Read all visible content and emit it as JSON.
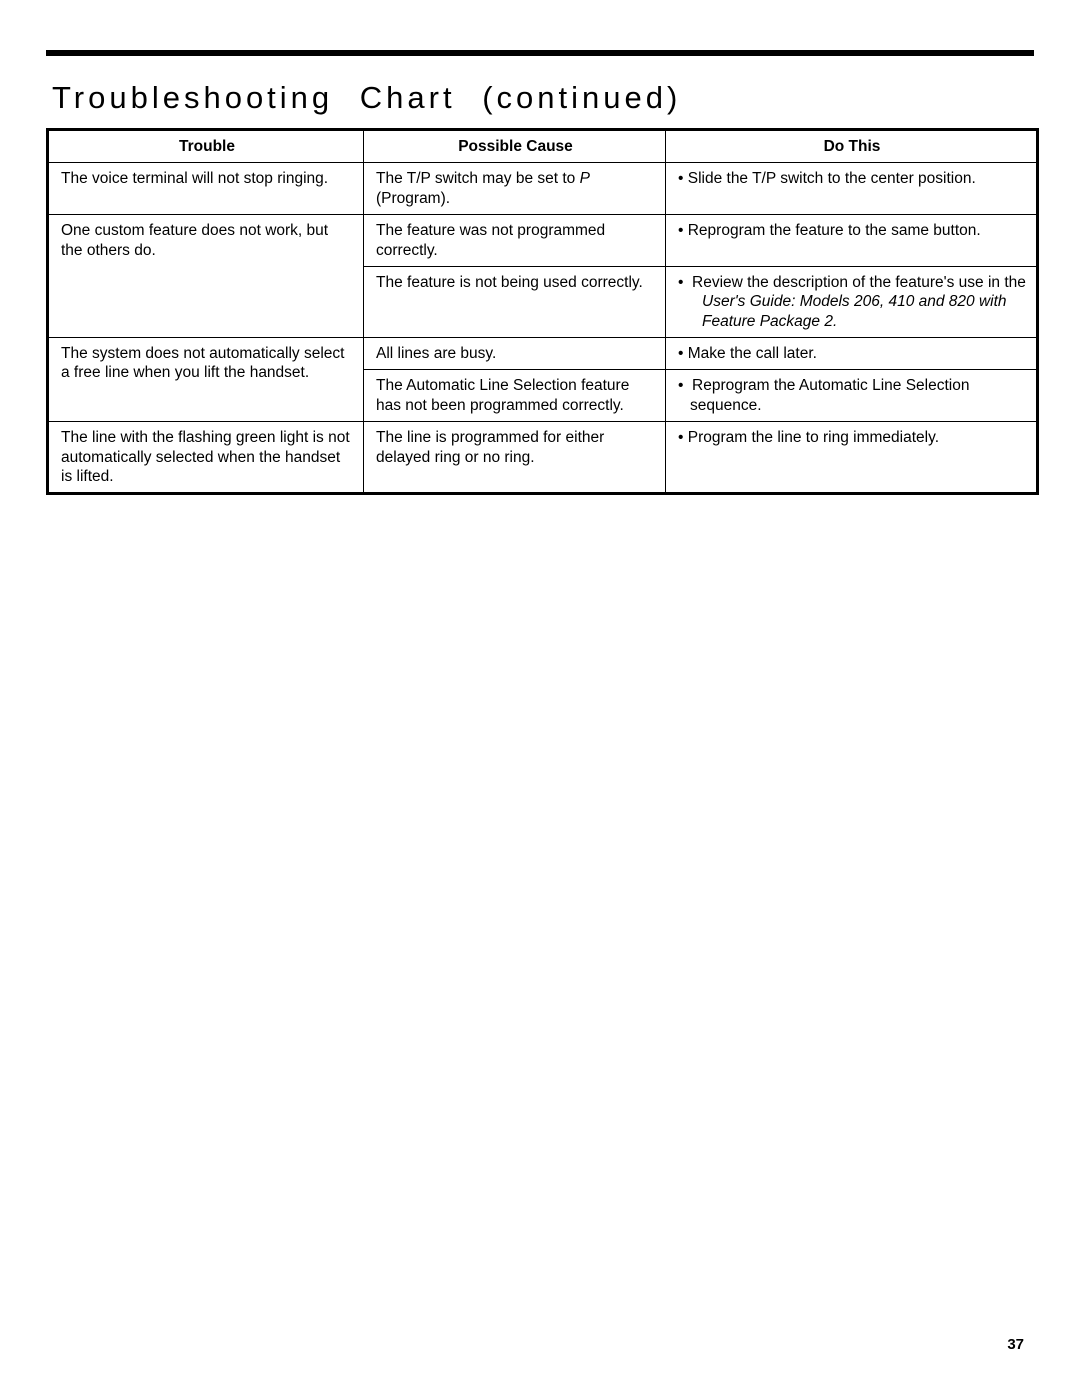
{
  "title": "Troubleshooting Chart (continued)",
  "headers": {
    "trouble": "Trouble",
    "cause": "Possible Cause",
    "do": "Do This"
  },
  "rows": {
    "r1": {
      "trouble": "The voice terminal will not stop ringing.",
      "cause_pre": "The T/P switch may be set to ",
      "cause_em": "P",
      "cause_post": " (Program).",
      "do": "Slide the T/P switch to the center position."
    },
    "r2": {
      "trouble": "One custom feature does not work, but the others do.",
      "cause_a": "The feature was not programmed correctly.",
      "do_a": "Reprogram the feature to the same button.",
      "cause_b": "The feature is not being used correctly.",
      "do_b_pre": "Review the description of the feature's use in the ",
      "do_b_em": "User's Guide: Models 206, 410 and 820 with Feature Package 2."
    },
    "r3": {
      "trouble": "The system does not automatically select a free line when you lift the handset.",
      "cause_a": "All lines are busy.",
      "do_a": "Make the call later.",
      "cause_b": "The Automatic Line Selection feature has not been programmed correctly.",
      "do_b": "Reprogram the Automatic Line Selection sequence."
    },
    "r4": {
      "trouble": "The line with the flashing green light is not automatically selected when the handset is lifted.",
      "cause": "The line is programmed for either delayed ring or no ring.",
      "do": "Program the line to ring immediately."
    }
  },
  "page_number": "37"
}
